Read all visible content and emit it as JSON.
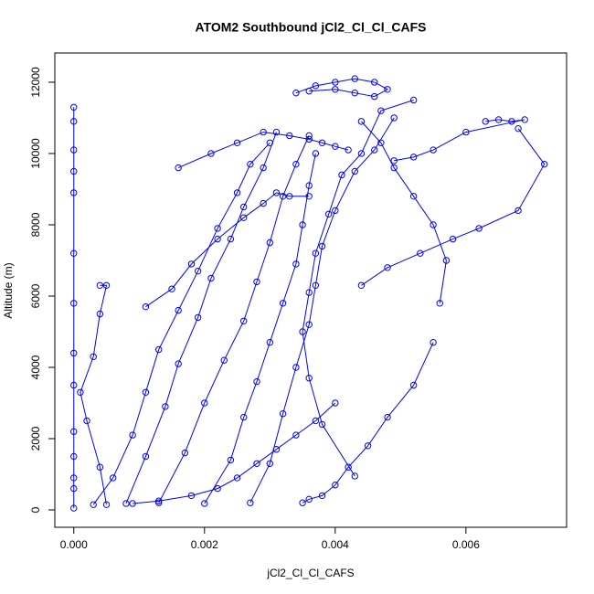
{
  "chart_data": {
    "type": "line",
    "markers": true,
    "title": "ATOM2 Southbound jCl2_Cl_Cl_CAFS",
    "x_label": "jCl2_Cl_Cl_CAFS",
    "y_label": "Altitude (m)",
    "color": "#0000ff",
    "xlim": [
      -0.00029,
      0.00754
    ],
    "ylim": [
      -487,
      12820
    ],
    "xticks": [
      {
        "value": 0,
        "label": "0.000"
      },
      {
        "value": 0.002,
        "label": "0.002"
      },
      {
        "value": 0.004,
        "label": "0.004"
      },
      {
        "value": 0.006,
        "label": "0.006"
      }
    ],
    "yticks": [
      0,
      2000,
      4000,
      6000,
      8000,
      10000,
      12000
    ],
    "series": [
      {
        "x": [
          0,
          0,
          0,
          0,
          0,
          0,
          0,
          0,
          0,
          0,
          0,
          0,
          0,
          0
        ],
        "values": [
          50,
          600,
          900,
          1500,
          2200,
          3500,
          4400,
          5800,
          7200,
          8900,
          9500,
          10100,
          10900,
          11300
        ]
      },
      {
        "x": [
          0.0003,
          0.0006,
          0.0009,
          0.0011,
          0.0013,
          0.0016,
          0.0019,
          0.0022,
          0.0025,
          0.0027,
          0.003
        ],
        "values": [
          150,
          900,
          2100,
          3300,
          4500,
          5600,
          6700,
          7900,
          8900,
          9700,
          10300
        ]
      },
      {
        "x": [
          0.0005,
          0.0004,
          0.0002,
          0.0001,
          0.0003,
          0.0004,
          0.0005,
          0.0004
        ],
        "values": [
          150,
          1200,
          2500,
          3300,
          4300,
          5500,
          6300,
          6300
        ]
      },
      {
        "x": [
          0.0008,
          0.0011,
          0.0014,
          0.0016,
          0.0019,
          0.0021,
          0.0024,
          0.0026,
          0.0029,
          0.0031
        ],
        "values": [
          180,
          1500,
          2900,
          4100,
          5400,
          6500,
          7600,
          8500,
          9600,
          10600
        ]
      },
      {
        "x": [
          0.0013,
          0.0017,
          0.002,
          0.0023,
          0.0026,
          0.0028,
          0.003,
          0.0032,
          0.0034,
          0.0036
        ],
        "values": [
          200,
          1600,
          3000,
          4200,
          5300,
          6400,
          7500,
          8800,
          9700,
          10500
        ]
      },
      {
        "x": [
          0.002,
          0.0024,
          0.0026,
          0.0028,
          0.003,
          0.0032,
          0.0034,
          0.0035,
          0.0036,
          0.0037
        ],
        "values": [
          180,
          1400,
          2600,
          3600,
          4700,
          5800,
          6900,
          8000,
          9100,
          10000
        ]
      },
      {
        "x": [
          0.0027,
          0.003,
          0.0032,
          0.0034,
          0.0036,
          0.0037,
          0.0038,
          0.004,
          0.0043,
          0.0046,
          0.0049
        ],
        "values": [
          200,
          1300,
          2700,
          4000,
          5200,
          6300,
          7400,
          8400,
          9500,
          10100,
          11000
        ]
      },
      {
        "x": [
          0.0043,
          0.0038,
          0.0036,
          0.0035,
          0.0036,
          0.0037,
          0.0039,
          0.0041,
          0.0044,
          0.0047,
          0.0052
        ],
        "values": [
          950,
          2400,
          3700,
          5000,
          6100,
          7200,
          8300,
          9400,
          10000,
          11200,
          11500
        ]
      },
      {
        "x": [
          0.0055,
          0.0052,
          0.0048,
          0.0045,
          0.0042,
          0.004,
          0.0038,
          0.0036,
          0.0035
        ],
        "values": [
          4700,
          3500,
          2600,
          1800,
          1200,
          700,
          400,
          300,
          200
        ]
      },
      {
        "x": [
          0.0056,
          0.0057,
          0.0055,
          0.0052,
          0.0049,
          0.0047,
          0.0044
        ],
        "values": [
          5800,
          7000,
          8000,
          8800,
          9600,
          10300,
          10900
        ]
      },
      {
        "x": [
          0.0068,
          0.0072,
          0.0068,
          0.0062,
          0.0058,
          0.0053,
          0.0048,
          0.0044
        ],
        "values": [
          10700,
          9700,
          8400,
          7900,
          7600,
          7200,
          6800,
          6300
        ]
      },
      {
        "x": [
          0.0034,
          0.0037,
          0.004,
          0.0043,
          0.0046,
          0.0048,
          0.0046,
          0.0043,
          0.004,
          0.0036
        ],
        "values": [
          11700,
          11900,
          12000,
          12100,
          12000,
          11800,
          11600,
          11700,
          11800,
          11750
        ]
      },
      {
        "x": [
          0.0063,
          0.0065,
          0.0067,
          0.0069,
          0.006,
          0.0055,
          0.0052,
          0.0049
        ],
        "values": [
          10900,
          10950,
          10900,
          10950,
          10600,
          10100,
          9900,
          9800
        ]
      },
      {
        "x": [
          0.0016,
          0.0021,
          0.0025,
          0.0029,
          0.0033,
          0.0036,
          0.0038,
          0.004,
          0.0042
        ],
        "values": [
          9600,
          10000,
          10300,
          10600,
          10500,
          10400,
          10300,
          10200,
          10100
        ]
      },
      {
        "x": [
          0.0011,
          0.0015,
          0.0018,
          0.0022,
          0.0026,
          0.0029,
          0.0031,
          0.0033,
          0.0036
        ],
        "values": [
          5700,
          6200,
          6900,
          7600,
          8200,
          8600,
          8900,
          8800,
          8800
        ]
      },
      {
        "x": [
          0.004,
          0.0037,
          0.0034,
          0.0031,
          0.0028,
          0.0025,
          0.0022,
          0.0018,
          0.0013,
          0.0009
        ],
        "values": [
          3000,
          2500,
          2100,
          1700,
          1300,
          900,
          600,
          400,
          250,
          180
        ]
      }
    ]
  }
}
